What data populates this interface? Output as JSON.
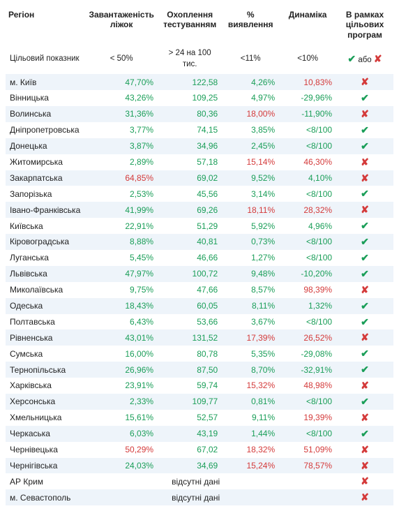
{
  "headers": {
    "region": "Регіон",
    "beds": "Завантаженість ліжок",
    "testing": "Охоплення тестуванням",
    "detection": "% виявлення",
    "dynamics": "Динаміка",
    "programs": "В рамках цільових програм"
  },
  "target": {
    "label": "Цільовий показник",
    "beds": "< 50%",
    "testing": "> 24 на 100 тис.",
    "detection": "<11%",
    "dynamics": "<10%",
    "programs_pre": "✔",
    "programs_mid": " або ",
    "programs_post": "✘"
  },
  "colors": {
    "green": "#1a9e58",
    "red": "#d43a3a",
    "stripe": "#eef4fa",
    "text": "#222222",
    "bg": "#ffffff"
  },
  "rows": [
    {
      "region": "м. Київ",
      "beds": "47,70%",
      "beds_c": "green",
      "testing": "122,58",
      "testing_c": "green",
      "detection": "4,26%",
      "detection_c": "green",
      "dynamics": "10,83%",
      "dynamics_c": "red",
      "ok": false
    },
    {
      "region": "Вінницька",
      "beds": "43,26%",
      "beds_c": "green",
      "testing": "109,25",
      "testing_c": "green",
      "detection": "4,97%",
      "detection_c": "green",
      "dynamics": "-29,96%",
      "dynamics_c": "green",
      "ok": true
    },
    {
      "region": "Волинська",
      "beds": "31,36%",
      "beds_c": "green",
      "testing": "80,36",
      "testing_c": "green",
      "detection": "18,00%",
      "detection_c": "red",
      "dynamics": "-11,90%",
      "dynamics_c": "green",
      "ok": false
    },
    {
      "region": "Дніпропетровська",
      "beds": "3,77%",
      "beds_c": "green",
      "testing": "74,15",
      "testing_c": "green",
      "detection": "3,85%",
      "detection_c": "green",
      "dynamics": "<8/100",
      "dynamics_c": "green",
      "ok": true
    },
    {
      "region": "Донецька",
      "beds": "3,87%",
      "beds_c": "green",
      "testing": "34,96",
      "testing_c": "green",
      "detection": "2,45%",
      "detection_c": "green",
      "dynamics": "<8/100",
      "dynamics_c": "green",
      "ok": true
    },
    {
      "region": "Житомирська",
      "beds": "2,89%",
      "beds_c": "green",
      "testing": "57,18",
      "testing_c": "green",
      "detection": "15,14%",
      "detection_c": "red",
      "dynamics": "46,30%",
      "dynamics_c": "red",
      "ok": false
    },
    {
      "region": "Закарпатська",
      "beds": "64,85%",
      "beds_c": "red",
      "testing": "69,02",
      "testing_c": "green",
      "detection": "9,52%",
      "detection_c": "green",
      "dynamics": "4,10%",
      "dynamics_c": "green",
      "ok": false
    },
    {
      "region": "Запорізька",
      "beds": "2,53%",
      "beds_c": "green",
      "testing": "45,56",
      "testing_c": "green",
      "detection": "3,14%",
      "detection_c": "green",
      "dynamics": "<8/100",
      "dynamics_c": "green",
      "ok": true
    },
    {
      "region": "Івано-Франківська",
      "beds": "41,99%",
      "beds_c": "green",
      "testing": "69,26",
      "testing_c": "green",
      "detection": "18,11%",
      "detection_c": "red",
      "dynamics": "28,32%",
      "dynamics_c": "red",
      "ok": false
    },
    {
      "region": "Київська",
      "beds": "22,91%",
      "beds_c": "green",
      "testing": "51,29",
      "testing_c": "green",
      "detection": "5,92%",
      "detection_c": "green",
      "dynamics": "4,96%",
      "dynamics_c": "green",
      "ok": true
    },
    {
      "region": "Кіровоградська",
      "beds": "8,88%",
      "beds_c": "green",
      "testing": "40,81",
      "testing_c": "green",
      "detection": "0,73%",
      "detection_c": "green",
      "dynamics": "<8/100",
      "dynamics_c": "green",
      "ok": true
    },
    {
      "region": "Луганська",
      "beds": "5,45%",
      "beds_c": "green",
      "testing": "46,66",
      "testing_c": "green",
      "detection": "1,27%",
      "detection_c": "green",
      "dynamics": "<8/100",
      "dynamics_c": "green",
      "ok": true
    },
    {
      "region": "Львівська",
      "beds": "47,97%",
      "beds_c": "green",
      "testing": "100,72",
      "testing_c": "green",
      "detection": "9,48%",
      "detection_c": "green",
      "dynamics": "-10,20%",
      "dynamics_c": "green",
      "ok": true
    },
    {
      "region": "Миколаївська",
      "beds": "9,75%",
      "beds_c": "green",
      "testing": "47,66",
      "testing_c": "green",
      "detection": "8,57%",
      "detection_c": "green",
      "dynamics": "98,39%",
      "dynamics_c": "red",
      "ok": false
    },
    {
      "region": "Одеська",
      "beds": "18,43%",
      "beds_c": "green",
      "testing": "60,05",
      "testing_c": "green",
      "detection": "8,11%",
      "detection_c": "green",
      "dynamics": "1,32%",
      "dynamics_c": "green",
      "ok": true
    },
    {
      "region": "Полтавська",
      "beds": "6,43%",
      "beds_c": "green",
      "testing": "53,66",
      "testing_c": "green",
      "detection": "3,67%",
      "detection_c": "green",
      "dynamics": "<8/100",
      "dynamics_c": "green",
      "ok": true
    },
    {
      "region": "Рівненська",
      "beds": "43,01%",
      "beds_c": "green",
      "testing": "131,52",
      "testing_c": "green",
      "detection": "17,39%",
      "detection_c": "red",
      "dynamics": "26,52%",
      "dynamics_c": "red",
      "ok": false
    },
    {
      "region": "Сумська",
      "beds": "16,00%",
      "beds_c": "green",
      "testing": "80,78",
      "testing_c": "green",
      "detection": "5,35%",
      "detection_c": "green",
      "dynamics": "-29,08%",
      "dynamics_c": "green",
      "ok": true
    },
    {
      "region": "Тернопільська",
      "beds": "26,96%",
      "beds_c": "green",
      "testing": "87,50",
      "testing_c": "green",
      "detection": "8,70%",
      "detection_c": "green",
      "dynamics": "-32,91%",
      "dynamics_c": "green",
      "ok": true
    },
    {
      "region": "Харківська",
      "beds": "23,91%",
      "beds_c": "green",
      "testing": "59,74",
      "testing_c": "green",
      "detection": "15,32%",
      "detection_c": "red",
      "dynamics": "48,98%",
      "dynamics_c": "red",
      "ok": false
    },
    {
      "region": "Херсонська",
      "beds": "2,33%",
      "beds_c": "green",
      "testing": "109,77",
      "testing_c": "green",
      "detection": "0,81%",
      "detection_c": "green",
      "dynamics": "<8/100",
      "dynamics_c": "green",
      "ok": true
    },
    {
      "region": "Хмельницька",
      "beds": "15,61%",
      "beds_c": "green",
      "testing": "52,57",
      "testing_c": "green",
      "detection": "9,11%",
      "detection_c": "green",
      "dynamics": "19,39%",
      "dynamics_c": "red",
      "ok": false
    },
    {
      "region": "Черкаська",
      "beds": "6,03%",
      "beds_c": "green",
      "testing": "43,19",
      "testing_c": "green",
      "detection": "1,44%",
      "detection_c": "green",
      "dynamics": "<8/100",
      "dynamics_c": "green",
      "ok": true
    },
    {
      "region": "Чернівецька",
      "beds": "50,29%",
      "beds_c": "red",
      "testing": "67,02",
      "testing_c": "green",
      "detection": "18,32%",
      "detection_c": "red",
      "dynamics": "51,09%",
      "dynamics_c": "red",
      "ok": false
    },
    {
      "region": "Чернігівська",
      "beds": "24,03%",
      "beds_c": "green",
      "testing": "34,69",
      "testing_c": "green",
      "detection": "15,24%",
      "detection_c": "red",
      "dynamics": "78,57%",
      "dynamics_c": "red",
      "ok": false
    },
    {
      "region": "АР Крим",
      "nodata": "відсутні дані",
      "ok": false
    },
    {
      "region": "м. Севастополь",
      "nodata": "відсутні дані",
      "ok": false
    }
  ]
}
